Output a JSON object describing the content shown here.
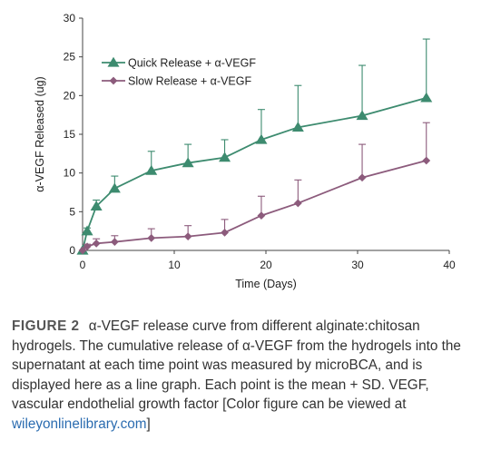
{
  "chart_data": {
    "type": "line",
    "xlabel": "Time (Days)",
    "ylabel": "α-VEGF Released (ug)",
    "xlim": [
      0,
      40
    ],
    "ylim": [
      0,
      30
    ],
    "xticks": [
      0,
      10,
      20,
      30,
      40
    ],
    "yticks": [
      0,
      5,
      10,
      15,
      20,
      25,
      30
    ],
    "legend_position": "top-left",
    "grid": false,
    "series": [
      {
        "name": "Quick Release + α-VEGF",
        "marker": "triangle",
        "color": "#3d8b6f",
        "x": [
          0,
          0.5,
          1.5,
          3.5,
          7.5,
          11.5,
          15.5,
          19.5,
          23.5,
          30.5,
          37.5
        ],
        "y": [
          0,
          2.5,
          5.7,
          8.0,
          10.3,
          11.3,
          12.0,
          14.3,
          15.9,
          17.4,
          19.7
        ],
        "sd": [
          0,
          0.4,
          0.8,
          1.6,
          2.5,
          2.4,
          2.3,
          3.9,
          5.4,
          6.5,
          7.6
        ]
      },
      {
        "name": "Slow Release + α-VEGF",
        "marker": "diamond",
        "color": "#8c5b7c",
        "x": [
          0,
          0.5,
          1.5,
          3.5,
          7.5,
          11.5,
          15.5,
          19.5,
          23.5,
          30.5,
          37.5
        ],
        "y": [
          0,
          0.5,
          0.9,
          1.1,
          1.6,
          1.8,
          2.3,
          4.5,
          6.1,
          9.4,
          11.6
        ],
        "sd": [
          0,
          0.3,
          0.6,
          0.8,
          1.2,
          1.4,
          1.7,
          2.5,
          3.0,
          4.3,
          4.9
        ]
      }
    ]
  },
  "caption": {
    "label": "FIGURE 2",
    "text": "α-VEGF release curve from different alginate:chitosan hydrogels. The cumulative release of α-VEGF from the hydrogels into the supernatant at each time point was measured by microBCA, and is displayed here as a line graph. Each point is the mean + SD. VEGF, vascular endothelial growth factor [Color figure can be viewed at ",
    "link": "wileyonlinelibrary.com",
    "closing": "]"
  }
}
